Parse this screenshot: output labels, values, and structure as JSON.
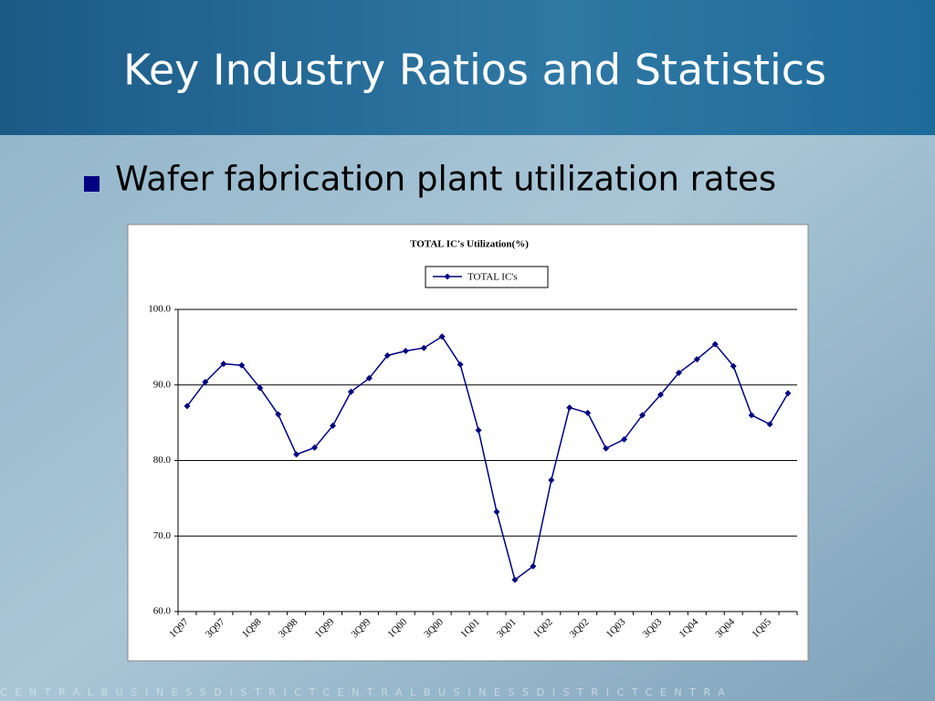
{
  "header": {
    "title": "Key Industry Ratios and Statistics"
  },
  "bullets": [
    "Wafer fabrication plant utilization rates"
  ],
  "footer": "CENTRALBUSINESSDISTRICTCENTRALBUSINESSDISTRICTCENTRA",
  "chart_data": {
    "type": "line",
    "title": "TOTAL IC's Utilization(%)",
    "categories": [
      "1Q97",
      null,
      "3Q97",
      null,
      "1Q98",
      null,
      "3Q98",
      null,
      "1Q99",
      null,
      "3Q99",
      null,
      "1Q00",
      null,
      "3Q00",
      null,
      "1Q01",
      null,
      "3Q01",
      null,
      "1Q02",
      null,
      "3Q02",
      null,
      "1Q03",
      null,
      "3Q03",
      null,
      "1Q04",
      null,
      "3Q04",
      null,
      "1Q05",
      null
    ],
    "series": [
      {
        "name": "TOTAL IC's",
        "color": "#000080",
        "values": [
          87.2,
          90.4,
          92.8,
          92.6,
          89.6,
          86.1,
          80.8,
          81.7,
          84.6,
          89.1,
          90.9,
          93.9,
          94.5,
          94.9,
          96.4,
          92.7,
          84.0,
          73.2,
          64.2,
          66.0,
          77.4,
          87.0,
          86.3,
          81.6,
          82.8,
          86.0,
          88.7,
          91.6,
          93.4,
          95.4,
          92.5,
          86.0,
          84.8,
          88.9
        ]
      }
    ],
    "ylim": [
      60,
      100
    ],
    "yticks": [
      {
        "value": 60,
        "label": "60.0"
      },
      {
        "value": 70,
        "label": "70.0"
      },
      {
        "value": 80,
        "label": "80.0"
      },
      {
        "value": 90,
        "label": "90.0"
      },
      {
        "value": 100,
        "label": "100.0"
      }
    ],
    "grid": true,
    "legend": "top"
  }
}
